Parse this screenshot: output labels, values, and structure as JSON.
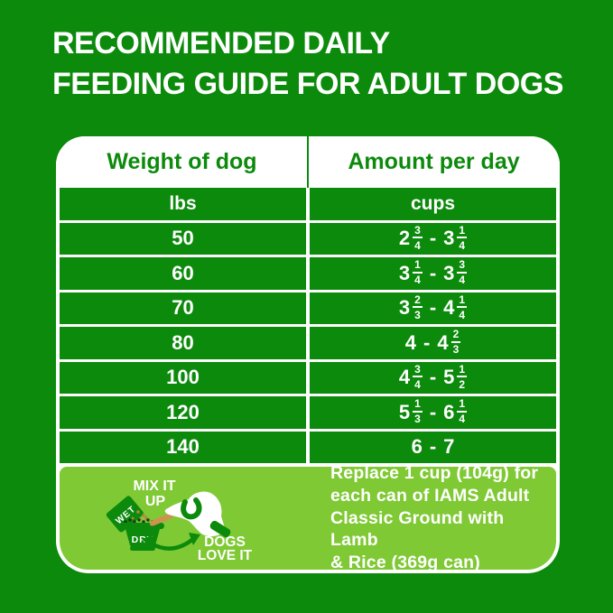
{
  "title": {
    "line1": "RECOMMENDED DAILY",
    "line2": "FEEDING GUIDE FOR ADULT DOGS"
  },
  "table": {
    "col1_header": "Weight of dog",
    "col2_header": "Amount per day",
    "col1_unit": "lbs",
    "col2_unit": "cups",
    "range_separator": "-",
    "rows": [
      {
        "weight": "50",
        "low": {
          "whole": "2",
          "num": "3",
          "den": "4"
        },
        "high": {
          "whole": "3",
          "num": "1",
          "den": "4"
        }
      },
      {
        "weight": "60",
        "low": {
          "whole": "3",
          "num": "1",
          "den": "4"
        },
        "high": {
          "whole": "3",
          "num": "3",
          "den": "4"
        }
      },
      {
        "weight": "70",
        "low": {
          "whole": "3",
          "num": "2",
          "den": "3"
        },
        "high": {
          "whole": "4",
          "num": "1",
          "den": "4"
        }
      },
      {
        "weight": "80",
        "low": {
          "whole": "4"
        },
        "high": {
          "whole": "4",
          "num": "2",
          "den": "3"
        }
      },
      {
        "weight": "100",
        "low": {
          "whole": "4",
          "num": "3",
          "den": "4"
        },
        "high": {
          "whole": "5",
          "num": "1",
          "den": "2"
        }
      },
      {
        "weight": "120",
        "low": {
          "whole": "5",
          "num": "1",
          "den": "3"
        },
        "high": {
          "whole": "6",
          "num": "1",
          "den": "4"
        }
      },
      {
        "weight": "140",
        "low": {
          "whole": "6"
        },
        "high": {
          "whole": "7"
        }
      }
    ]
  },
  "footer": {
    "mix_line1": "MIX IT",
    "mix_line2": "UP",
    "wet_label": "WET",
    "dry_label": "DRY",
    "dogs_line1": "DOGS",
    "dogs_line2": "LOVE IT",
    "note_lines": [
      "Replace 1 cup (104g) for",
      "each can of IAMS Adult",
      "Classic Ground with Lamb",
      "& Rice (369g can)"
    ]
  },
  "colors": {
    "brand_green": "#0c8a0c",
    "lime_green": "#7fc934",
    "white": "#ffffff",
    "tongue_tan": "#cf9150",
    "kibble_brown": "#b98044",
    "kibble_dark": "#143d14"
  }
}
